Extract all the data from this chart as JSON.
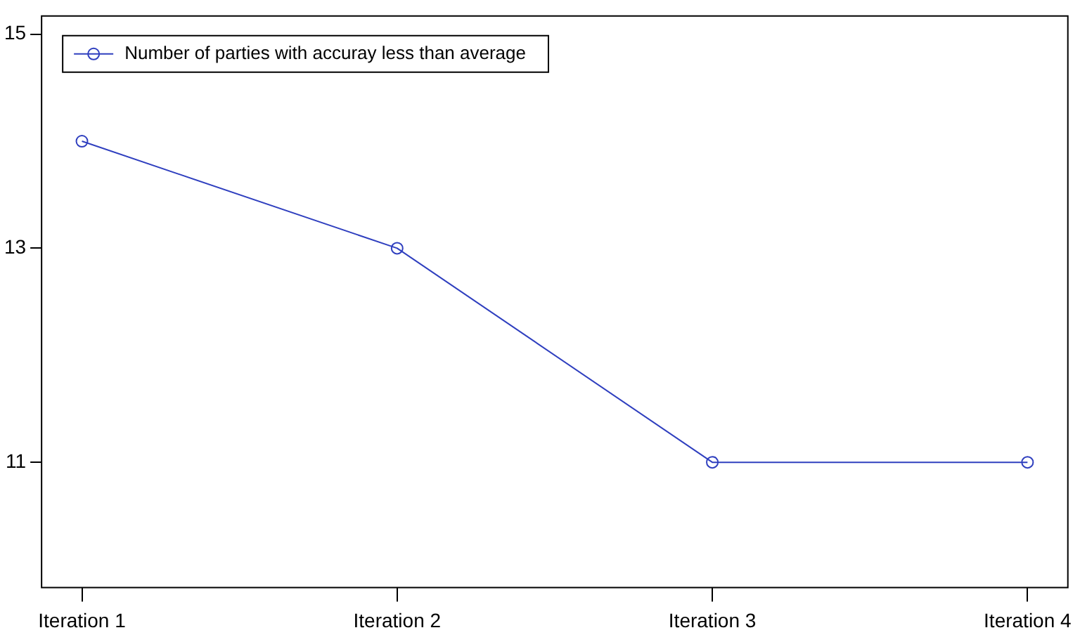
{
  "chart_data": {
    "type": "line",
    "categories": [
      "Iteration 1",
      "Iteration 2",
      "Iteration 3",
      "Iteration 4"
    ],
    "series": [
      {
        "name": "Number of parties with accuray less than average",
        "color": "#2f3fbf",
        "values": [
          14,
          13,
          11,
          11
        ]
      }
    ],
    "ylim": [
      9.83,
      15.17
    ],
    "yticks": [
      15,
      13,
      11
    ],
    "grid": false,
    "legend": "top left",
    "marker": "circle",
    "line_style": "solid"
  }
}
